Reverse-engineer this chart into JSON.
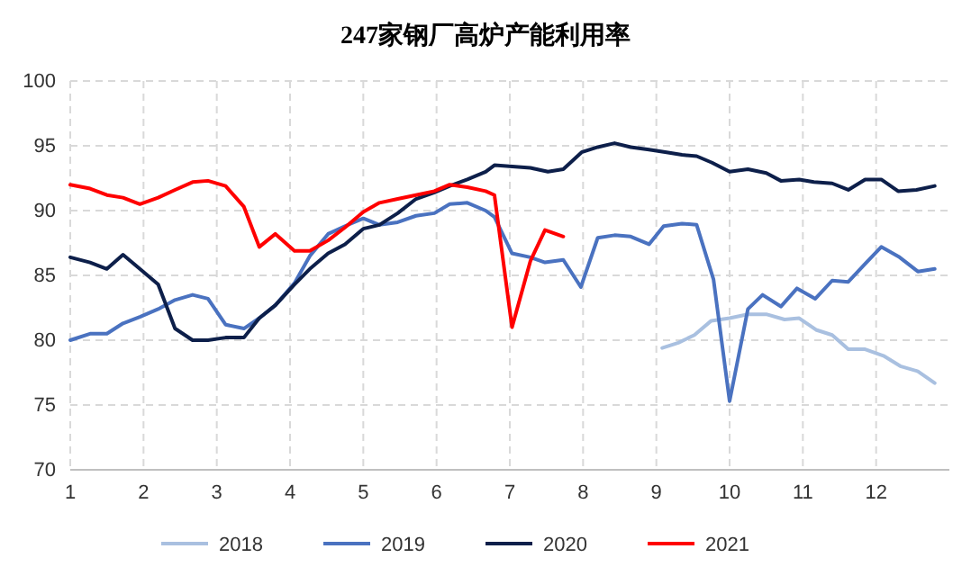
{
  "chart_data": {
    "type": "line",
    "title": "247家钢厂高炉产能利用率",
    "xlim": [
      1,
      13
    ],
    "xticks": [
      1,
      2,
      3,
      4,
      5,
      6,
      7,
      8,
      9,
      10,
      11,
      12
    ],
    "ylim": [
      70,
      100
    ],
    "yticks": [
      70,
      75,
      80,
      85,
      90,
      95,
      100
    ],
    "grid": true,
    "legend": "bottom",
    "marker": "none",
    "line_style": "solid",
    "series": [
      {
        "name": "2018",
        "color": "#a9c0e0",
        "x": [
          9.08,
          9.3,
          9.52,
          9.75,
          10,
          10.25,
          10.5,
          10.75,
          10.95,
          11.18,
          11.4,
          11.62,
          11.85,
          12.1,
          12.33,
          12.57,
          12.8
        ],
        "values": [
          79.4,
          79.8,
          80.4,
          81.5,
          81.7,
          82.0,
          82.0,
          81.6,
          81.7,
          80.8,
          80.4,
          79.3,
          79.3,
          78.8,
          78.0,
          77.6,
          76.7
        ]
      },
      {
        "name": "2019",
        "color": "#4a72c0",
        "x": [
          1,
          1.27,
          1.5,
          1.72,
          1.95,
          2.2,
          2.43,
          2.67,
          2.88,
          3.12,
          3.37,
          3.58,
          3.8,
          4.06,
          4.27,
          4.52,
          4.75,
          5,
          5.22,
          5.47,
          5.72,
          5.97,
          6.18,
          6.42,
          6.67,
          6.79,
          7.03,
          7.28,
          7.48,
          7.73,
          7.97,
          8.2,
          8.43,
          8.65,
          8.9,
          9.1,
          9.35,
          9.55,
          9.78,
          10,
          10.25,
          10.45,
          10.7,
          10.92,
          11.17,
          11.4,
          11.62,
          11.85,
          12.07,
          12.32,
          12.57,
          12.8
        ],
        "values": [
          80.0,
          80.5,
          80.5,
          81.3,
          81.8,
          82.4,
          83.1,
          83.5,
          83.2,
          81.2,
          80.9,
          81.7,
          82.7,
          84.4,
          86.5,
          88.2,
          88.8,
          89.4,
          88.9,
          89.1,
          89.6,
          89.8,
          90.5,
          90.6,
          90.0,
          89.5,
          86.7,
          86.4,
          86.0,
          86.2,
          84.1,
          87.9,
          88.1,
          88.0,
          87.4,
          88.8,
          89.0,
          88.9,
          84.7,
          75.3,
          82.4,
          83.5,
          82.6,
          84.0,
          83.2,
          84.6,
          84.5,
          85.9,
          87.2,
          86.4,
          85.3,
          85.5
        ]
      },
      {
        "name": "2020",
        "color": "#0d1f4a",
        "x": [
          1,
          1.27,
          1.5,
          1.72,
          1.95,
          2.2,
          2.43,
          2.67,
          2.88,
          3.12,
          3.37,
          3.58,
          3.8,
          4.06,
          4.27,
          4.52,
          4.75,
          5,
          5.22,
          5.47,
          5.72,
          5.97,
          6.18,
          6.42,
          6.67,
          6.79,
          7.28,
          7.52,
          7.73,
          7.98,
          8.2,
          8.43,
          8.65,
          8.9,
          9.14,
          9.35,
          9.55,
          9.76,
          10,
          10.25,
          10.5,
          10.7,
          10.95,
          11.15,
          11.4,
          11.62,
          11.85,
          12.07,
          12.3,
          12.55,
          12.8
        ],
        "values": [
          86.4,
          86.0,
          85.5,
          86.6,
          85.5,
          84.3,
          80.9,
          80.0,
          80.0,
          80.2,
          80.2,
          81.7,
          82.7,
          84.3,
          85.5,
          86.7,
          87.4,
          88.6,
          88.9,
          89.8,
          90.9,
          91.4,
          91.9,
          92.4,
          93.0,
          93.5,
          93.3,
          93.0,
          93.2,
          94.5,
          94.9,
          95.2,
          94.9,
          94.7,
          94.5,
          94.3,
          94.2,
          93.7,
          93.0,
          93.2,
          92.9,
          92.3,
          92.4,
          92.2,
          92.1,
          91.6,
          92.4,
          92.4,
          91.5,
          91.6,
          91.9
        ]
      },
      {
        "name": "2021",
        "color": "#ff0000",
        "x": [
          1,
          1.27,
          1.5,
          1.72,
          1.95,
          2.2,
          2.43,
          2.67,
          2.88,
          3.12,
          3.37,
          3.58,
          3.8,
          4.06,
          4.27,
          4.52,
          4.75,
          5,
          5.22,
          5.47,
          5.72,
          5.97,
          6.18,
          6.42,
          6.67,
          6.79,
          7.03,
          7.28,
          7.48,
          7.73
        ],
        "values": [
          92.0,
          91.7,
          91.2,
          91.0,
          90.5,
          91.0,
          91.6,
          92.2,
          92.3,
          91.9,
          90.3,
          87.2,
          88.2,
          86.9,
          86.9,
          87.7,
          88.7,
          89.9,
          90.6,
          90.9,
          91.2,
          91.5,
          92.0,
          91.8,
          91.5,
          91.2,
          81.0,
          86.1,
          88.5,
          88.0
        ]
      }
    ]
  }
}
